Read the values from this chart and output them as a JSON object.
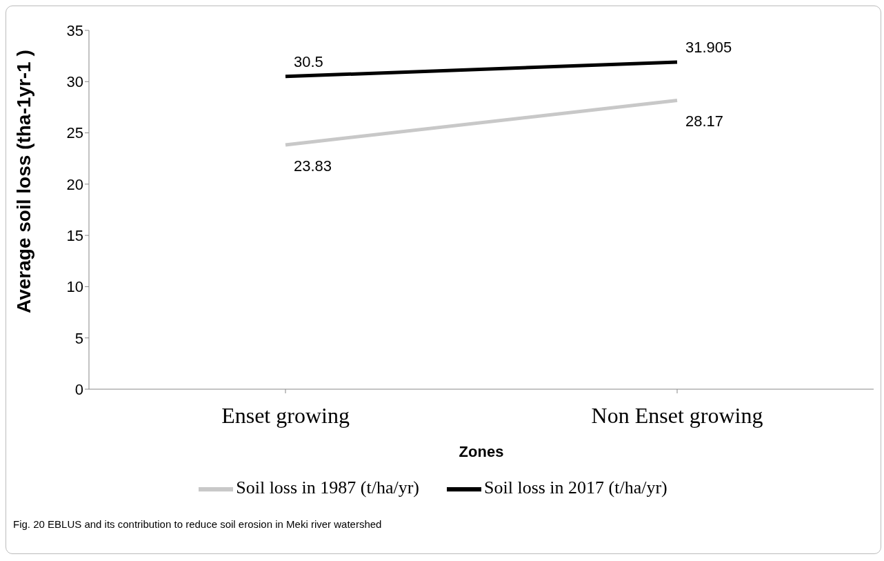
{
  "chart_data": {
    "type": "line",
    "xlabel": "Zones",
    "ylabel": "Average soil loss (tha-1yr-1 )",
    "categories": [
      "Enset growing",
      "Non Enset growing"
    ],
    "series": [
      {
        "name": "Soil loss in 1987 (t/ha/yr)",
        "color": "#c8c8c8",
        "values": [
          23.83,
          28.17
        ]
      },
      {
        "name": "Soil loss in 2017 (t/ha/yr)",
        "color": "#000000",
        "values": [
          30.5,
          31.905
        ]
      }
    ],
    "ylim": [
      0,
      35
    ],
    "yticks": [
      0,
      5,
      10,
      15,
      20,
      25,
      30,
      35
    ],
    "grid": false,
    "legend": "bottom",
    "marker": "none",
    "line_style": "solid",
    "data_labels": true,
    "annotations": [
      "Fig. 20 EBLUS and its contribution to reduce soil erosion in Meki river watershed"
    ]
  }
}
